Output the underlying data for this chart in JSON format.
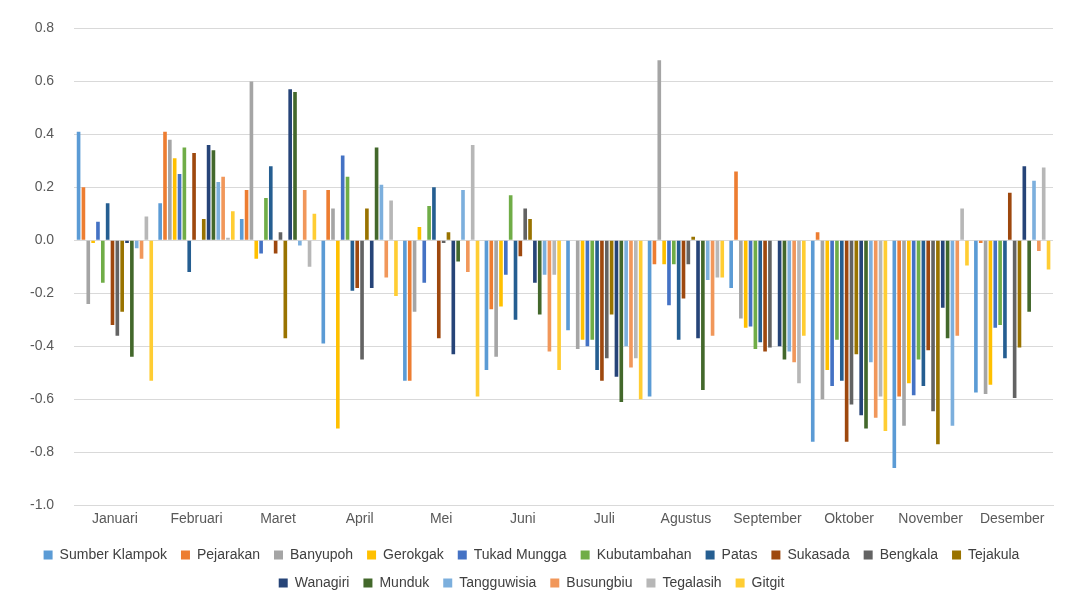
{
  "chart_data": {
    "type": "bar",
    "categories": [
      "Januari",
      "Februari",
      "Maret",
      "April",
      "Mei",
      "Juni",
      "Juli",
      "Agustus",
      "September",
      "Oktober",
      "November",
      "Desember"
    ],
    "ylim": [
      -1.0,
      0.8
    ],
    "yticks": [
      {
        "value": -1.0,
        "label": "-1.0"
      },
      {
        "value": -0.8,
        "label": "-0.8"
      },
      {
        "value": -0.6,
        "label": "-0.6"
      },
      {
        "value": -0.4,
        "label": "-0.4"
      },
      {
        "value": -0.2,
        "label": "-0.2"
      },
      {
        "value": 0,
        "label": "0.0"
      },
      {
        "value": 0.2,
        "label": "0.2"
      },
      {
        "value": 0.4,
        "label": "0.4"
      },
      {
        "value": 0.6,
        "label": "0.6"
      },
      {
        "value": 0.8,
        "label": "0.8"
      }
    ],
    "grid": "y",
    "legend": "bottom",
    "series": [
      {
        "name": "Sumber Klampok",
        "color": "#5b9bd5",
        "values": [
          0.41,
          0.14,
          0.08,
          -0.39,
          -0.53,
          -0.49,
          -0.34,
          -0.59,
          -0.18,
          -0.76,
          -0.86,
          -0.575
        ]
      },
      {
        "name": "Pejarakan",
        "color": "#ed7d31",
        "values": [
          0.2,
          0.41,
          0.19,
          0.19,
          -0.53,
          -0.26,
          0,
          -0.09,
          0.26,
          0.03,
          -0.59,
          -0.01
        ]
      },
      {
        "name": "Banyupoh",
        "color": "#a5a5a5",
        "values": [
          -0.24,
          0.38,
          0.6,
          0.12,
          -0.27,
          -0.44,
          -0.41,
          0.68,
          -0.295,
          -0.6,
          -0.7,
          -0.58
        ]
      },
      {
        "name": "Gerokgak",
        "color": "#ffc000",
        "values": [
          -0.01,
          0.31,
          -0.07,
          -0.71,
          0.05,
          -0.25,
          -0.375,
          -0.09,
          -0.33,
          -0.49,
          -0.54,
          -0.545
        ]
      },
      {
        "name": "Tukad Mungga",
        "color": "#4472c4",
        "values": [
          0.07,
          0.25,
          -0.05,
          0.32,
          -0.16,
          -0.13,
          -0.4,
          -0.245,
          -0.325,
          -0.55,
          -0.585,
          -0.33
        ]
      },
      {
        "name": "Kubutambahan",
        "color": "#70ad47",
        "values": [
          -0.16,
          0.35,
          0.16,
          0.24,
          0.13,
          0.17,
          -0.375,
          -0.09,
          -0.41,
          -0.375,
          -0.45,
          -0.32
        ]
      },
      {
        "name": "Patas",
        "color": "#255e91",
        "values": [
          0.14,
          -0.12,
          0.28,
          -0.19,
          0.2,
          -0.3,
          -0.49,
          -0.375,
          -0.385,
          -0.53,
          -0.55,
          -0.445
        ]
      },
      {
        "name": "Sukasada",
        "color": "#9e480e",
        "values": [
          -0.32,
          0.33,
          -0.05,
          -0.18,
          -0.37,
          -0.06,
          -0.53,
          -0.22,
          -0.42,
          -0.76,
          -0.415,
          0.18
        ]
      },
      {
        "name": "Bengkala",
        "color": "#636363",
        "values": [
          -0.36,
          0,
          0.03,
          -0.45,
          -0.01,
          0.12,
          -0.445,
          -0.09,
          -0.405,
          -0.62,
          -0.645,
          -0.595
        ]
      },
      {
        "name": "Tejakula",
        "color": "#997300",
        "values": [
          -0.27,
          0.08,
          -0.37,
          0.12,
          0.03,
          0.08,
          -0.28,
          0.013,
          0,
          -0.43,
          -0.77,
          -0.405
        ]
      },
      {
        "name": "Wanagiri",
        "color": "#264478",
        "values": [
          -0.01,
          0.36,
          0.57,
          -0.18,
          -0.43,
          -0.16,
          -0.515,
          -0.37,
          -0.4,
          -0.66,
          -0.255,
          0.28
        ]
      },
      {
        "name": "Munduk",
        "color": "#43682b",
        "values": [
          -0.44,
          0.34,
          0.56,
          0.35,
          -0.08,
          -0.28,
          -0.61,
          -0.565,
          -0.45,
          -0.71,
          -0.37,
          -0.27
        ]
      },
      {
        "name": "Tangguwisia",
        "color": "#7cafdd",
        "values": [
          -0.03,
          0.22,
          -0.02,
          0.21,
          0.19,
          -0.13,
          -0.4,
          -0.15,
          -0.42,
          -0.46,
          -0.7,
          0.225
        ]
      },
      {
        "name": "Busungbiu",
        "color": "#f1975a",
        "values": [
          -0.07,
          0.24,
          0.19,
          -0.14,
          -0.12,
          -0.42,
          -0.48,
          -0.36,
          -0.46,
          -0.67,
          -0.36,
          -0.04
        ]
      },
      {
        "name": "Tegalasih",
        "color": "#b7b7b7",
        "values": [
          0.09,
          0.01,
          -0.1,
          0.15,
          0.36,
          -0.13,
          -0.445,
          -0.14,
          -0.54,
          -0.59,
          0.12,
          0.275
        ]
      },
      {
        "name": "Gitgit",
        "color": "#ffcd33",
        "values": [
          -0.53,
          0.11,
          0.1,
          -0.21,
          -0.59,
          -0.49,
          -0.6,
          -0.14,
          -0.36,
          -0.72,
          -0.095,
          -0.11
        ]
      }
    ]
  }
}
